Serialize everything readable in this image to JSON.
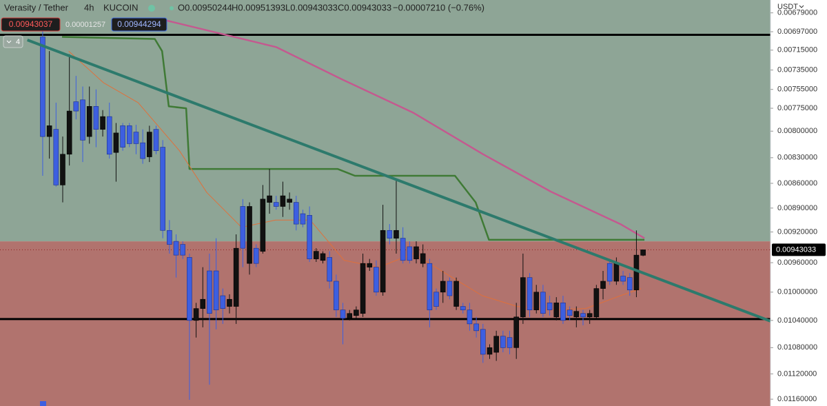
{
  "chart_data": {
    "type": "candlestick",
    "title": "Verasity / Tether",
    "interval": "4h",
    "exchange": "KUCOIN",
    "ohlc_labels": [
      "O0.00950244",
      "H0.00951393",
      "L0.00943033",
      "C0.00943033",
      "−0.00007210 (−0.76%)"
    ],
    "bid": 0.00943037,
    "spread": 1.257e-05,
    "ask": 0.00944294,
    "indicator_count": 4,
    "currency": "USDT",
    "last_price_label": "0.00943033",
    "log_scale": true,
    "inverted": true,
    "xlim": [
      -6.4,
      109.1
    ],
    "ylim": [
      0.00667,
      0.01171
    ],
    "yticks": [
      {
        "value": 0.00679,
        "label": "0.00679000"
      },
      {
        "value": 0.00697,
        "label": "0.00697000"
      },
      {
        "value": 0.00715,
        "label": "0.00715000"
      },
      {
        "value": 0.00735,
        "label": "0.00735000"
      },
      {
        "value": 0.00755,
        "label": "0.00755000"
      },
      {
        "value": 0.00775,
        "label": "0.00775000"
      },
      {
        "value": 0.008,
        "label": "0.00800000"
      },
      {
        "value": 0.0083,
        "label": "0.00830000"
      },
      {
        "value": 0.0086,
        "label": "0.00860000"
      },
      {
        "value": 0.0089,
        "label": "0.00890000"
      },
      {
        "value": 0.0092,
        "label": "0.00920000"
      },
      {
        "value": 0.0096,
        "label": "0.00960000"
      },
      {
        "value": 0.01,
        "label": "0.01000000"
      },
      {
        "value": 0.0104,
        "label": "0.01040000"
      },
      {
        "value": 0.0108,
        "label": "0.01080000"
      },
      {
        "value": 0.0112,
        "label": "0.01120000"
      },
      {
        "value": 0.0116,
        "label": "0.01160000"
      }
    ],
    "up_color": "#3d5fe0",
    "down_color": "#111111",
    "zone_split": 0.00932,
    "zone_colors": [
      "#8ea596",
      "#b1736e"
    ],
    "levels": [
      0.007,
      0.01038
    ],
    "open": [
      0.00702,
      0.00806,
      0.00798,
      0.00862,
      0.00826,
      0.00768,
      0.00766,
      0.00806,
      0.00773,
      0.00798,
      0.00784,
      0.00824,
      0.00794,
      0.00794,
      0.00801,
      0.00813,
      0.00829,
      0.00798,
      0.00818,
      0.00918,
      0.00932,
      0.00936,
      0.00953,
      0.0104,
      0.01023,
      0.00971,
      0.00971,
      0.01005,
      0.0102,
      0.0102,
      0.00888,
      0.00961,
      0.00941,
      0.00945,
      0.00883,
      0.00883,
      0.00888,
      0.00883,
      0.00883,
      0.00897,
      0.00899,
      0.00955,
      0.00957,
      0.00953,
      0.00985,
      0.01025,
      0.01037,
      0.01033,
      0.0103,
      0.00966,
      0.00966,
      0.01,
      0.00918,
      0.00928,
      0.00928,
      0.00939,
      0.00955,
      0.00961,
      0.00961,
      0.01,
      0.01,
      0.00985,
      0.0102,
      0.0102,
      0.01025,
      0.01045,
      0.01053,
      0.0109,
      0.01087,
      0.01063,
      0.01065,
      0.0108,
      0.01035,
      0.0098,
      0.01025,
      0.01,
      0.01015,
      0.01035,
      0.01015,
      0.01025,
      0.01035,
      0.0103,
      0.01035,
      0.01035,
      0.00995,
      0.00961,
      0.00985,
      0.00978,
      0.0098,
      0.00997,
      0.00950244
    ],
    "high": [
      0.00851,
      0.00831,
      0.00864,
      0.00883,
      0.00839,
      0.00787,
      0.00835,
      0.00814,
      0.00818,
      0.00806,
      0.00831,
      0.00858,
      0.00822,
      0.00818,
      0.00826,
      0.00837,
      0.00835,
      0.00826,
      0.00928,
      0.00948,
      0.0098,
      0.00955,
      0.01161,
      0.01065,
      0.0105,
      0.01137,
      0.01053,
      0.01045,
      0.0103,
      0.01045,
      0.00966,
      0.00976,
      0.00966,
      0.00948,
      0.00897,
      0.00892,
      0.00901,
      0.00892,
      0.00918,
      0.00914,
      0.00959,
      0.00959,
      0.00961,
      0.00995,
      0.01035,
      0.01075,
      0.0104,
      0.01037,
      0.01035,
      0.00971,
      0.01005,
      0.01005,
      0.00936,
      0.00948,
      0.00961,
      0.00961,
      0.00961,
      0.00966,
      0.0105,
      0.01025,
      0.01015,
      0.0101,
      0.01025,
      0.0103,
      0.01055,
      0.01065,
      0.01103,
      0.01097,
      0.011,
      0.01087,
      0.0109,
      0.01097,
      0.01045,
      0.01035,
      0.0103,
      0.01035,
      0.01033,
      0.0104,
      0.01045,
      0.0104,
      0.0105,
      0.01047,
      0.01045,
      0.01037,
      0.0101,
      0.0099,
      0.0099,
      0.0099,
      0.01005,
      0.01007,
      0.00951393
    ],
    "low": [
      0.00696,
      0.00716,
      0.00769,
      0.00806,
      0.00719,
      0.00741,
      0.00752,
      0.00752,
      0.00755,
      0.00777,
      0.00769,
      0.00791,
      0.00791,
      0.00791,
      0.00793,
      0.00798,
      0.00794,
      0.00794,
      0.0081,
      0.00905,
      0.00923,
      0.00932,
      0.00948,
      0.01015,
      0.00966,
      0.00948,
      0.00928,
      0.00995,
      0.01003,
      0.00923,
      0.00879,
      0.00883,
      0.00936,
      0.00862,
      0.00843,
      0.00875,
      0.00858,
      0.00871,
      0.00875,
      0.00892,
      0.00888,
      0.00941,
      0.00945,
      0.00945,
      0.00976,
      0.01015,
      0.01025,
      0.0102,
      0.00948,
      0.00955,
      0.00957,
      0.00886,
      0.0091,
      0.00854,
      0.00914,
      0.00932,
      0.00932,
      0.00936,
      0.00955,
      0.00995,
      0.00971,
      0.0098,
      0.0098,
      0.01015,
      0.01015,
      0.01035,
      0.01045,
      0.01075,
      0.01055,
      0.01055,
      0.01055,
      0.01015,
      0.00948,
      0.00974,
      0.0099,
      0.0099,
      0.01005,
      0.01007,
      0.01005,
      0.0102,
      0.0102,
      0.01025,
      0.01025,
      0.0099,
      0.00971,
      0.00955,
      0.00953,
      0.00971,
      0.00974,
      0.00918,
      0.00943033
    ],
    "close": [
      0.00806,
      0.00794,
      0.00862,
      0.00826,
      0.00778,
      0.00778,
      0.0081,
      0.00773,
      0.00798,
      0.00784,
      0.00826,
      0.00802,
      0.00818,
      0.00814,
      0.00814,
      0.00831,
      0.00801,
      0.00822,
      0.00918,
      0.00936,
      0.0095,
      0.0095,
      0.0104,
      0.01023,
      0.0101,
      0.0103,
      0.01025,
      0.01023,
      0.0101,
      0.00941,
      0.00941,
      0.00888,
      0.00961,
      0.00879,
      0.00875,
      0.00888,
      0.00875,
      0.00879,
      0.0091,
      0.0091,
      0.00955,
      0.00945,
      0.00948,
      0.00985,
      0.01025,
      0.01037,
      0.0103,
      0.01025,
      0.00961,
      0.00961,
      0.01,
      0.00918,
      0.00928,
      0.00918,
      0.00957,
      0.00957,
      0.00939,
      0.00948,
      0.01025,
      0.0102,
      0.00985,
      0.01005,
      0.00985,
      0.01025,
      0.01045,
      0.01055,
      0.0109,
      0.0108,
      0.01063,
      0.0108,
      0.0108,
      0.01035,
      0.0098,
      0.01025,
      0.01,
      0.0103,
      0.01025,
      0.01015,
      0.0104,
      0.01033,
      0.01027,
      0.01035,
      0.0103,
      0.00995,
      0.00985,
      0.00985,
      0.00961,
      0.00985,
      0.00997,
      0.0095,
      0.00943033
    ],
    "trendline": {
      "x": [
        -2.3,
        109.1
      ],
      "values": [
        0.00705,
        0.01041
      ],
      "color": "#2d7a6c"
    },
    "overlays": [
      {
        "color": "#c4598f",
        "width": 2.5,
        "x": [
          18.4,
          35,
          45,
          55.6,
          66,
          76.2,
          86.6,
          90.2
        ],
        "values": [
          0.00686,
          0.00712,
          0.00745,
          0.0078,
          0.00826,
          0.0087,
          0.0091,
          0.00928
        ]
      },
      {
        "color": "#3f7a35",
        "width": 2.5,
        "x": [
          2.9,
          16.8,
          17.9,
          18.9,
          21.5,
          22,
          44.2,
          46.8,
          61.8,
          64.9,
          66.9,
          90.2
        ],
        "values": [
          0.00702,
          0.00704,
          0.00716,
          0.00773,
          0.00775,
          0.00843,
          0.00843,
          0.00851,
          0.00851,
          0.00883,
          0.0093,
          0.0093
        ]
      },
      {
        "color": "#e0703a",
        "width": 1,
        "x": [
          3.9,
          9.1,
          14.3,
          20.5,
          24.6,
          29.8,
          34.9,
          40.1,
          45.2,
          50.4,
          55.6,
          60.7,
          65.9,
          71.1,
          76.2,
          81.4,
          86.6,
          89.7
        ],
        "values": [
          0.00716,
          0.00748,
          0.00769,
          0.00822,
          0.00871,
          0.00914,
          0.00905,
          0.00905,
          0.00957,
          0.00966,
          0.00948,
          0.00976,
          0.01005,
          0.0102,
          0.01025,
          0.01023,
          0.01005,
          0.00995
        ]
      }
    ]
  }
}
